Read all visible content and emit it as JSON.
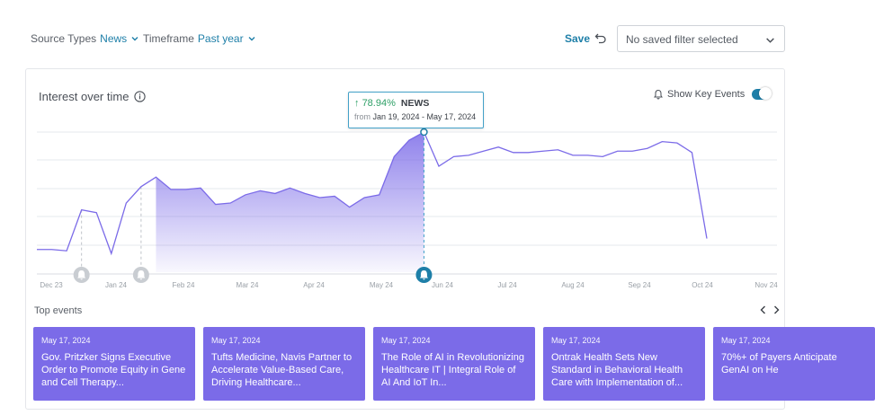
{
  "filters": {
    "source_types": {
      "label": "Source Types",
      "value": "News"
    },
    "timeframe": {
      "label": "Timeframe",
      "value": "Past year"
    },
    "save_label": "Save",
    "saved_filter_placeholder": "No saved filter selected"
  },
  "card": {
    "title": "Interest over time",
    "show_key_events_label": "Show Key Events",
    "show_key_events_on": true
  },
  "tooltip": {
    "change": "78.94%",
    "source": "NEWS",
    "from_label": "from",
    "range": "Jan 19, 2024 - May 17, 2024"
  },
  "chart_data": {
    "type": "area",
    "x_tick_labels": [
      "Dec 23",
      "Jan 24",
      "Feb 24",
      "Mar 24",
      "Apr 24",
      "May 24",
      "Jun 24",
      "Jul 24",
      "Aug 24",
      "Sep 24",
      "Oct 24",
      "Nov 24"
    ],
    "series": [
      {
        "values": [
          14,
          14,
          13,
          43,
          41,
          11,
          48,
          60,
          67,
          58,
          58,
          59,
          47,
          48,
          54,
          57,
          55,
          59,
          55,
          52,
          53,
          45,
          52,
          54,
          82,
          94,
          100,
          75,
          82,
          83,
          86,
          89,
          85,
          85,
          86,
          87,
          83,
          83,
          82,
          86,
          86,
          88,
          93,
          92,
          85,
          22
        ],
        "color": "#7b6be8"
      }
    ],
    "highlight_range": [
      "Jan 19, 2024",
      "May 17, 2024"
    ],
    "key_events": [
      "Dec 23",
      "Jan 24",
      "May 24"
    ],
    "grid": true,
    "legend": "none"
  },
  "events": {
    "title": "Top events",
    "items": [
      {
        "date": "May 17, 2024",
        "title": "Gov. Pritzker Signs Executive Order to Promote Equity in Gene and Cell Therapy..."
      },
      {
        "date": "May 17, 2024",
        "title": "Tufts Medicine, Navis Partner to Accelerate Value-Based Care, Driving Healthcare..."
      },
      {
        "date": "May 17, 2024",
        "title": "The Role of AI in Revolutionizing Healthcare IT | Integral Role of AI And IoT In..."
      },
      {
        "date": "May 17, 2024",
        "title": "Ontrak Health Sets New Standard in Behavioral Health Care with Implementation of..."
      },
      {
        "date": "May 17, 2024",
        "title": "70%+ of Payers Anticipate GenAI on He"
      }
    ]
  },
  "icons": {
    "chevron": "chevron-down-icon",
    "undo": "undo-icon",
    "info": "info-icon",
    "bell": "bell-icon",
    "nav_prev": "chevron-left-icon",
    "nav_next": "chevron-right-icon"
  },
  "colors": {
    "accent": "#1e7fa8",
    "series": "#7b6be8",
    "event_card": "#7b6be8",
    "positive": "#2e9f66"
  }
}
